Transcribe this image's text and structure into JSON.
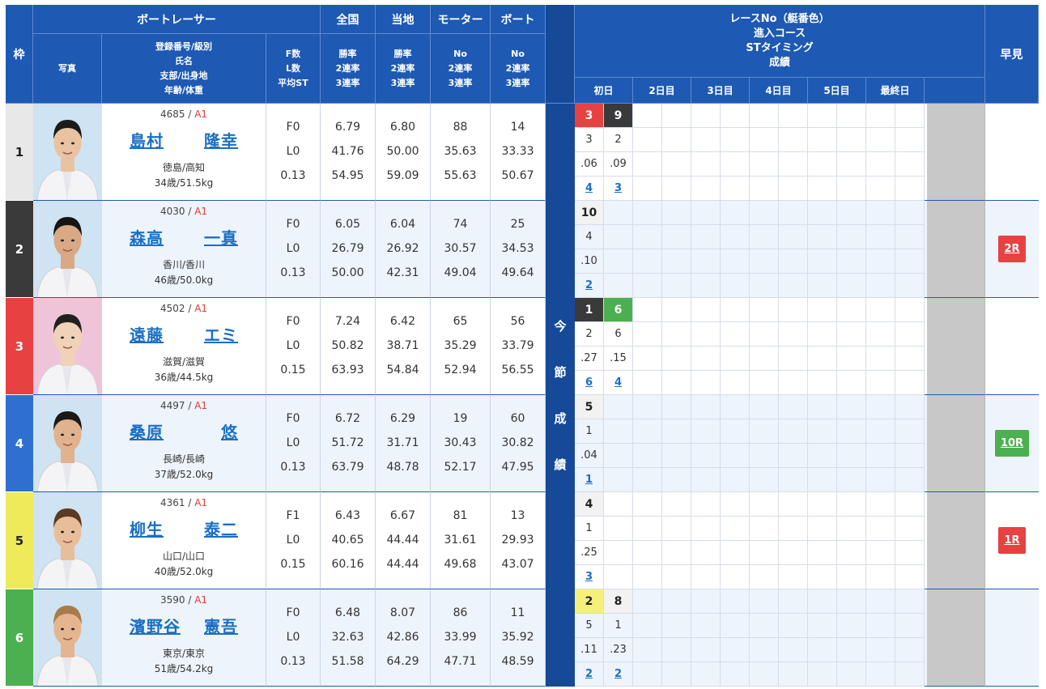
{
  "header": {
    "waku": "枠",
    "boat_racer": "ボートレーサー",
    "photo": "写真",
    "racer_info": [
      "登録番号/級別",
      "氏名",
      "支部/出身地",
      "年齢/体重"
    ],
    "fl": [
      "F数",
      "L数",
      "平均ST"
    ],
    "zenkoku": "全国",
    "zenkoku_sub": [
      "勝率",
      "2連率",
      "3連率"
    ],
    "touchi": "当地",
    "touchi_sub": [
      "勝率",
      "2連率",
      "3連率"
    ],
    "motor": "モーター",
    "motor_sub": [
      "No",
      "2連率",
      "3連率"
    ],
    "boat": "ボート",
    "boat_sub": [
      "No",
      "2連率",
      "3連率"
    ],
    "race_info": [
      "レースNo（艇番色）",
      "進入コース",
      "STタイミング",
      "成績"
    ],
    "days": [
      "初日",
      "2日目",
      "3日目",
      "4日目",
      "5日目",
      "最終日"
    ],
    "hayami": "早見",
    "konsetsu": [
      "今",
      "節",
      "成",
      "績"
    ]
  },
  "colors": {
    "header_bg": "#1e59b3",
    "waku": [
      "#e8e8e8",
      "#3a3a3a",
      "#e84141",
      "#2f6fd0",
      "#eeea5a",
      "#4caf50"
    ],
    "waku_text": [
      "#222",
      "#fff",
      "#fff",
      "#fff",
      "#222",
      "#fff"
    ],
    "race_cell": {
      "1": "#f2f2f2",
      "2": "#3a3a3a",
      "3": "#e84141",
      "4": "#2f6fd0",
      "5": "#f5f07a",
      "6": "#4caf50"
    },
    "race_text": {
      "1": "#222",
      "2": "#fff",
      "3": "#fff",
      "4": "#fff",
      "5": "#222",
      "6": "#fff"
    },
    "badge_red": "#e84141",
    "badge_green": "#4caf50"
  },
  "racers": [
    {
      "waku": "1",
      "reg": "4685",
      "cls": "A1",
      "sei": "島村",
      "mei": "隆幸",
      "branch": "徳島/高知",
      "age": "34歳/51.5kg",
      "fl": [
        "F0",
        "L0",
        "0.13"
      ],
      "zenkoku": [
        "6.79",
        "41.76",
        "54.95"
      ],
      "touchi": [
        "6.80",
        "50.00",
        "59.09"
      ],
      "motor": [
        "88",
        "35.63",
        "55.63"
      ],
      "boat": [
        "14",
        "33.33",
        "50.67"
      ],
      "results": [
        {
          "race": "3",
          "course": "3",
          "st": ".06",
          "rank": "4"
        },
        {
          "race": "9",
          "course": "2",
          "st": ".09",
          "rank": "3"
        }
      ],
      "hayami": "",
      "hayami_color": ""
    },
    {
      "waku": "2",
      "reg": "4030",
      "cls": "A1",
      "sei": "森高",
      "mei": "一真",
      "branch": "香川/香川",
      "age": "46歳/50.0kg",
      "fl": [
        "F0",
        "L0",
        "0.13"
      ],
      "zenkoku": [
        "6.05",
        "26.79",
        "50.00"
      ],
      "touchi": [
        "6.04",
        "26.92",
        "42.31"
      ],
      "motor": [
        "74",
        "30.57",
        "49.04"
      ],
      "boat": [
        "25",
        "34.53",
        "49.64"
      ],
      "results": [
        {
          "race": "10",
          "course": "4",
          "st": ".10",
          "rank": "2"
        }
      ],
      "hayami": "2R",
      "hayami_color": "red"
    },
    {
      "waku": "3",
      "reg": "4502",
      "cls": "A1",
      "sei": "遠藤",
      "mei": "エミ",
      "branch": "滋賀/滋賀",
      "age": "36歳/44.5kg",
      "fl": [
        "F0",
        "L0",
        "0.15"
      ],
      "zenkoku": [
        "7.24",
        "50.82",
        "63.93"
      ],
      "touchi": [
        "6.42",
        "38.71",
        "54.84"
      ],
      "motor": [
        "65",
        "35.29",
        "52.94"
      ],
      "boat": [
        "56",
        "33.79",
        "56.55"
      ],
      "results": [
        {
          "race": "1",
          "course": "2",
          "st": ".27",
          "rank": "6"
        },
        {
          "race": "6",
          "course": "6",
          "st": ".15",
          "rank": "4"
        }
      ],
      "hayami": "",
      "hayami_color": ""
    },
    {
      "waku": "4",
      "reg": "4497",
      "cls": "A1",
      "sei": "桑原",
      "mei": "悠",
      "branch": "長崎/長崎",
      "age": "37歳/52.0kg",
      "fl": [
        "F0",
        "L0",
        "0.13"
      ],
      "zenkoku": [
        "6.72",
        "51.72",
        "63.79"
      ],
      "touchi": [
        "6.29",
        "31.71",
        "48.78"
      ],
      "motor": [
        "19",
        "30.43",
        "52.17"
      ],
      "boat": [
        "60",
        "30.82",
        "47.95"
      ],
      "results": [
        {
          "race": "5",
          "course": "1",
          "st": ".04",
          "rank": "1"
        }
      ],
      "hayami": "10R",
      "hayami_color": "green"
    },
    {
      "waku": "5",
      "reg": "4361",
      "cls": "A1",
      "sei": "柳生",
      "mei": "泰二",
      "branch": "山口/山口",
      "age": "40歳/52.0kg",
      "fl": [
        "F1",
        "L0",
        "0.15"
      ],
      "zenkoku": [
        "6.43",
        "40.65",
        "60.16"
      ],
      "touchi": [
        "6.67",
        "44.44",
        "44.44"
      ],
      "motor": [
        "81",
        "31.61",
        "49.68"
      ],
      "boat": [
        "13",
        "29.93",
        "43.07"
      ],
      "results": [
        {
          "race": "4",
          "course": "1",
          "st": ".25",
          "rank": "3"
        }
      ],
      "hayami": "1R",
      "hayami_color": "red"
    },
    {
      "waku": "6",
      "reg": "3590",
      "cls": "A1",
      "sei": "濱野谷",
      "mei": "憲吾",
      "branch": "東京/東京",
      "age": "51歳/54.2kg",
      "fl": [
        "F0",
        "L0",
        "0.13"
      ],
      "zenkoku": [
        "6.48",
        "32.63",
        "51.58"
      ],
      "touchi": [
        "8.07",
        "42.86",
        "64.29"
      ],
      "motor": [
        "86",
        "33.99",
        "47.71"
      ],
      "boat": [
        "11",
        "35.92",
        "48.59"
      ],
      "results": [
        {
          "race": "2",
          "course": "5",
          "st": ".11",
          "rank": "2"
        },
        {
          "race": "8",
          "course": "1",
          "st": ".23",
          "rank": "2"
        }
      ],
      "hayami": "",
      "hayami_color": ""
    }
  ]
}
